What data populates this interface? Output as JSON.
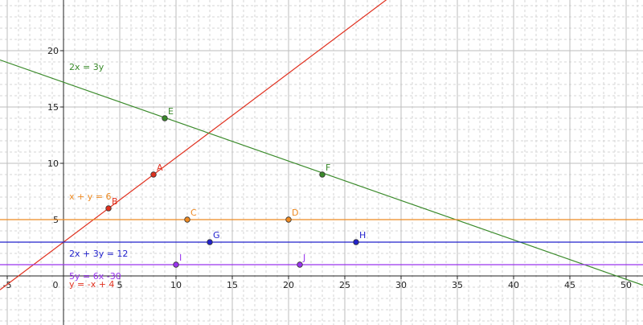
{
  "chart_data": {
    "type": "line",
    "xlim": [
      -5.5,
      51
    ],
    "ylim": [
      -4,
      29
    ],
    "grid": true,
    "major_grid_step": 5,
    "minor_grid_step": 1,
    "x_ticks": [
      {
        "value": -5,
        "label": "-5"
      },
      {
        "value": 0,
        "label": "0"
      },
      {
        "value": 5,
        "label": "5"
      },
      {
        "value": 10,
        "label": "10"
      },
      {
        "value": 15,
        "label": "15"
      },
      {
        "value": 20,
        "label": "20"
      },
      {
        "value": 25,
        "label": "25"
      },
      {
        "value": 30,
        "label": "30"
      },
      {
        "value": 35,
        "label": "35"
      },
      {
        "value": 40,
        "label": "40"
      },
      {
        "value": 45,
        "label": "45"
      },
      {
        "value": 50,
        "label": "50"
      }
    ],
    "y_ticks": [
      {
        "value": 5,
        "label": "5"
      },
      {
        "value": 10,
        "label": "10"
      },
      {
        "value": 15,
        "label": "15"
      },
      {
        "value": 20,
        "label": "20"
      }
    ],
    "lines": [
      {
        "id": "red",
        "color": "#e0301e",
        "slope": 0.75,
        "intercept": 3
      },
      {
        "id": "green",
        "color": "#3a8a2a",
        "slope": -0.35,
        "intercept": 17.2
      },
      {
        "id": "orange",
        "color": "#ee8a22",
        "slope": 0,
        "intercept": 5
      },
      {
        "id": "blue",
        "color": "#2222cc",
        "slope": 0,
        "intercept": 3
      },
      {
        "id": "purple",
        "color": "#9933ee",
        "slope": 0,
        "intercept": 1
      }
    ],
    "points": [
      {
        "name": "A",
        "x": 8,
        "y": 9,
        "color": "#e0301e"
      },
      {
        "name": "B",
        "x": 4,
        "y": 6,
        "color": "#e0301e"
      },
      {
        "name": "E",
        "x": 9,
        "y": 14,
        "color": "#3a8a2a"
      },
      {
        "name": "F",
        "x": 23,
        "y": 9,
        "color": "#3a8a2a"
      },
      {
        "name": "C",
        "x": 11,
        "y": 5,
        "color": "#ee8a22"
      },
      {
        "name": "D",
        "x": 20,
        "y": 5,
        "color": "#ee8a22"
      },
      {
        "name": "G",
        "x": 13,
        "y": 3,
        "color": "#2222cc"
      },
      {
        "name": "H",
        "x": 26,
        "y": 3,
        "color": "#2222cc"
      },
      {
        "name": "I",
        "x": 10,
        "y": 1,
        "color": "#9933ee"
      },
      {
        "name": "J",
        "x": 21,
        "y": 1,
        "color": "#9933ee"
      }
    ],
    "annotations": [
      {
        "text": "2x = 3y",
        "x": 0.5,
        "y": 18.3,
        "color": "#3a8a2a"
      },
      {
        "text": "x + y = 6",
        "x": 0.5,
        "y": 6.8,
        "color": "#ee8a22"
      },
      {
        "text": "2x + 3y = 12",
        "x": 0.5,
        "y": 1.7,
        "color": "#2222cc"
      },
      {
        "text": "5y = 6x -30",
        "x": 0.5,
        "y": -0.3,
        "color": "#9933ee"
      },
      {
        "text": "y = -x + 4",
        "x": 0.5,
        "y": -1.0,
        "color": "#e0301e"
      }
    ]
  }
}
